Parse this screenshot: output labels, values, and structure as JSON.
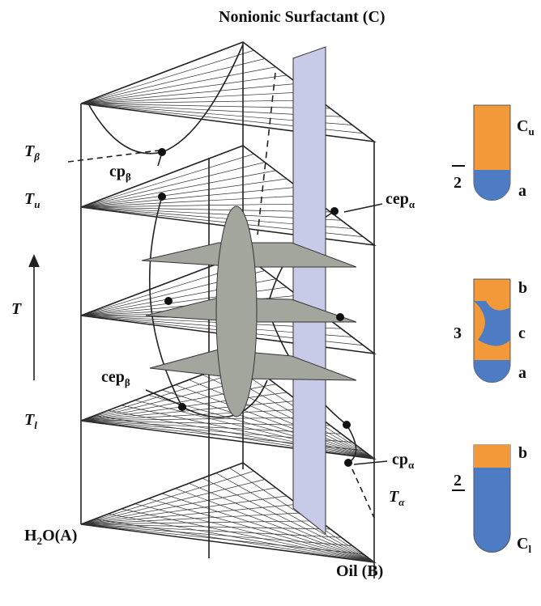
{
  "title": "Nonionic Surfactant (C)",
  "vertices": {
    "water": {
      "main": "H",
      "sub": "2",
      "rest": "O(A)"
    },
    "oil": "Oil (B)"
  },
  "labels": {
    "t_beta": {
      "main": "T",
      "sub": "β"
    },
    "cp_beta": {
      "main": "cp",
      "sub": "β"
    },
    "t_u": {
      "main": "T",
      "sub": "u"
    },
    "cep_alpha": {
      "main": "cep",
      "sub": "α"
    },
    "t_axis": "T",
    "cep_beta": {
      "main": "cep",
      "sub": "β"
    },
    "t_l": {
      "main": "T",
      "sub": "l"
    },
    "cp_alpha": {
      "main": "cp",
      "sub": "α"
    },
    "t_alpha": {
      "main": "T",
      "sub": "α"
    }
  },
  "tubes": [
    {
      "phase": "2",
      "top": {
        "main": "C",
        "sub": "u"
      },
      "bottom": "a"
    },
    {
      "phase": "3",
      "top": "b",
      "middle": "c",
      "bottom": "a"
    },
    {
      "phase": "2",
      "top": "b",
      "bottom": {
        "main": "C",
        "sub": "l"
      }
    }
  ]
}
